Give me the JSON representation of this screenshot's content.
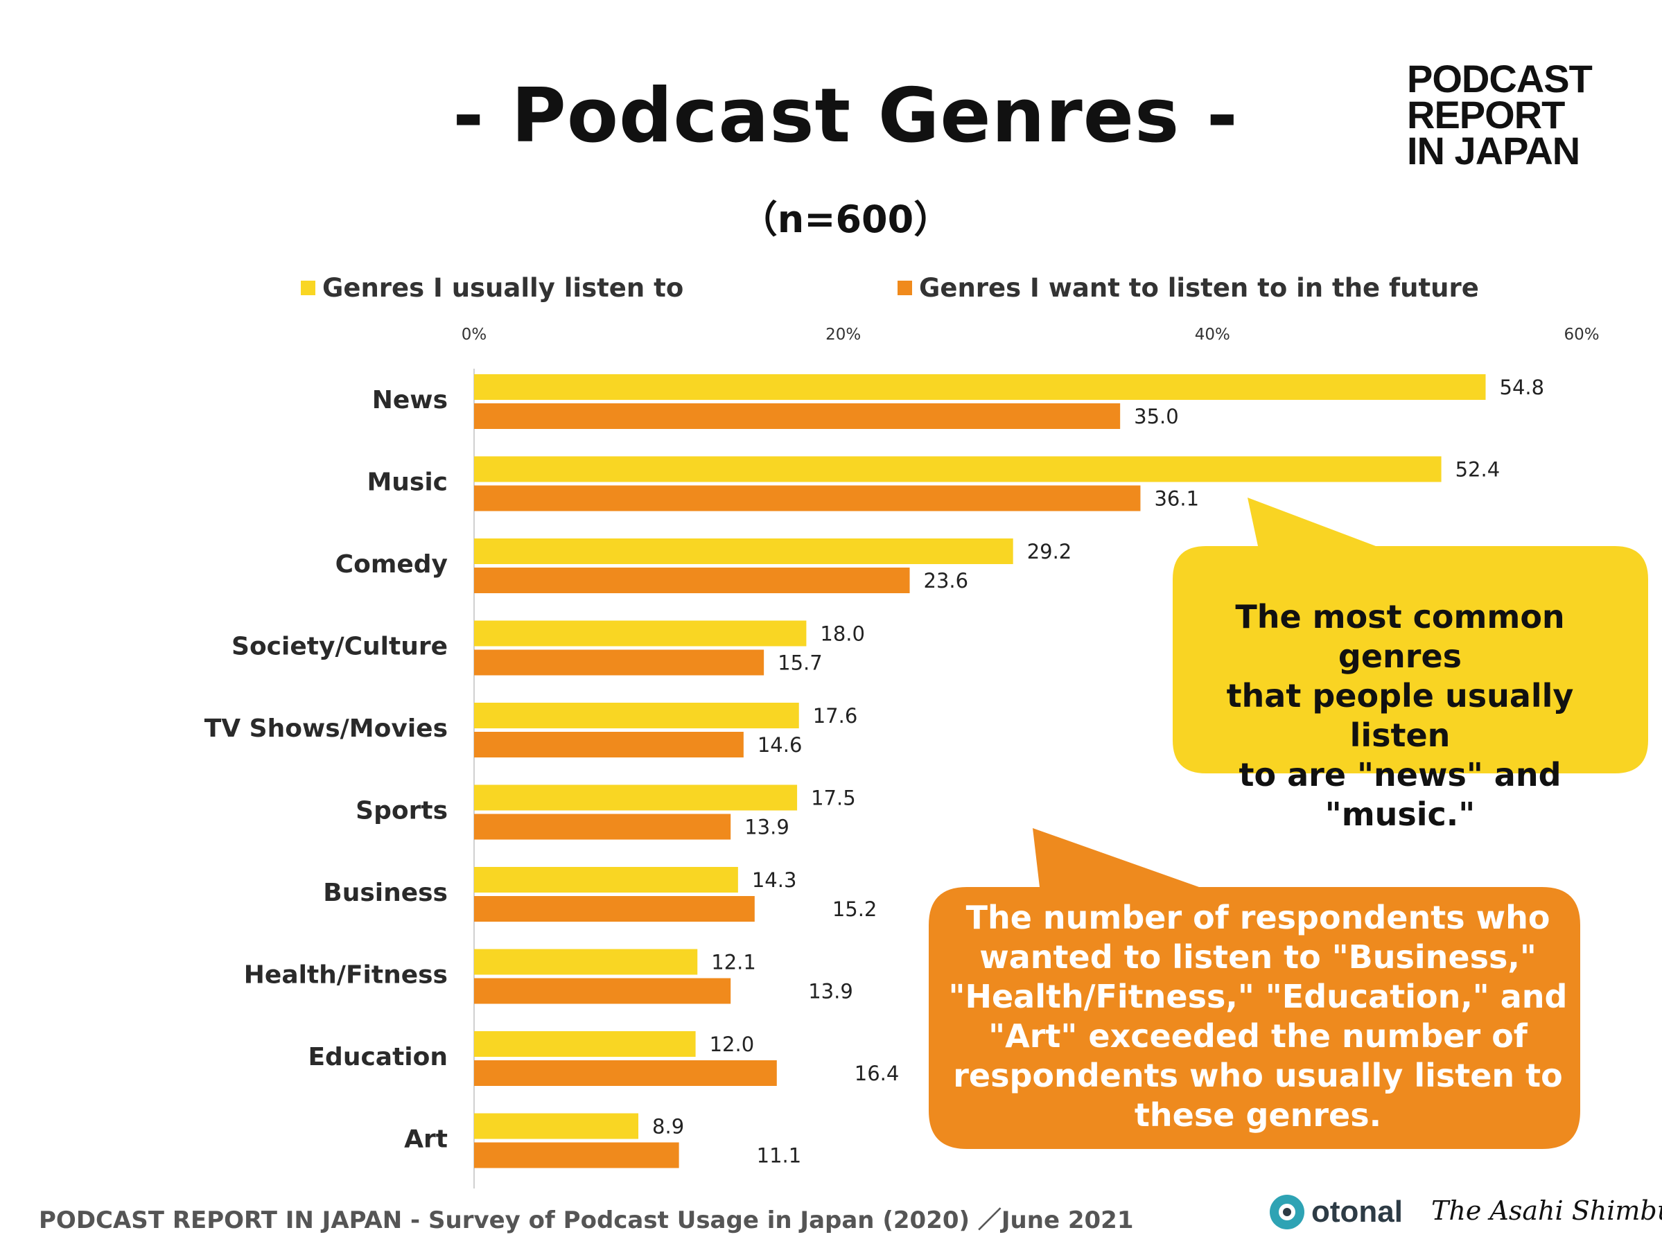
{
  "header": {
    "title": "- Podcast Genres -",
    "subtitle": "（n=600）",
    "brand_lines": [
      "PODCAST",
      "REPORT",
      "IN JAPAN"
    ]
  },
  "colors": {
    "usual": "#F9D623",
    "future": "#F08A1C",
    "callout_yellow": "#F9D423",
    "callout_orange": "#EE8A1E",
    "axis": "#d0d0d0"
  },
  "chart_data": {
    "type": "bar",
    "orientation": "horizontal",
    "categories": [
      "News",
      "Music",
      "Comedy",
      "Society/Culture",
      "TV Shows/Movies",
      "Sports",
      "Business",
      "Health/Fitness",
      "Education",
      "Art"
    ],
    "series": [
      {
        "name": "Genres I usually listen to",
        "values": [
          54.8,
          52.4,
          29.2,
          18.0,
          17.6,
          17.5,
          14.3,
          12.1,
          12.0,
          8.9
        ],
        "labels": [
          "54.8",
          "52.4",
          "29.2",
          "18.0",
          "17.6",
          "17.5",
          "14.3",
          "12.1",
          "12.0",
          "8.9"
        ]
      },
      {
        "name": "Genres I want to listen to in the future",
        "values": [
          35.0,
          36.1,
          23.6,
          15.7,
          14.6,
          13.9,
          15.2,
          13.9,
          16.4,
          11.1
        ],
        "labels": [
          "35.0",
          "36.1",
          "23.6",
          "15.7",
          "14.6",
          "13.9",
          "15.2",
          "13.9",
          "16.4",
          "11.1"
        ]
      }
    ],
    "axis": {
      "range": [
        0,
        60
      ],
      "ticks": [
        0,
        20,
        40,
        60
      ],
      "tick_labels": [
        "0%",
        "20%",
        "40%",
        "60%"
      ],
      "position": "top"
    },
    "legend_position": "top",
    "grid": false
  },
  "legend": {
    "usual": "Genres I usually listen to",
    "future": "Genres I want to listen to in the future"
  },
  "callouts": {
    "yellow_lines": [
      "The most common genres",
      "that people usually listen",
      "to are \"news\" and \"music.\""
    ],
    "orange_lines": [
      "The number of respondents who",
      "wanted to listen to \"Business,\"",
      "\"Health/Fitness,\" \"Education,\" and",
      "\"Art\" exceeded the number of",
      "respondents who usually listen to",
      "these genres."
    ]
  },
  "footer": {
    "source": "PODCAST REPORT IN JAPAN - Survey of Podcast Usage in Japan (2020) ／June 2021",
    "otonal": "otonal",
    "asahi": "The Asahi Shimbun"
  }
}
